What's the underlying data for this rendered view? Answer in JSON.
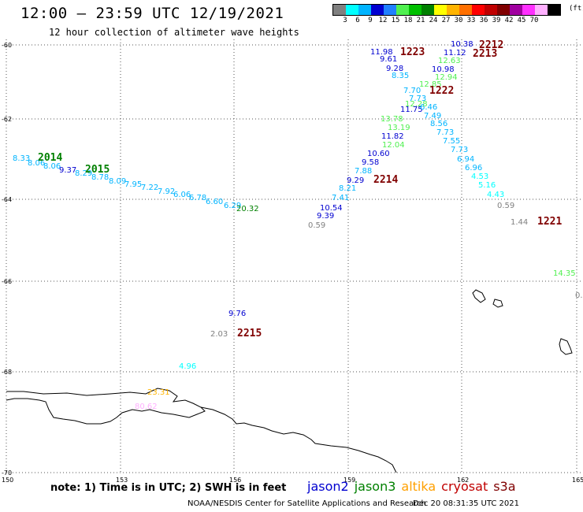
{
  "header": {
    "title": "12:00 — 23:59 UTC 12/19/2021",
    "subtitle": "12 hour collection of altimeter wave heights"
  },
  "legend": {
    "colors": [
      "#808080",
      "#00ffff",
      "#00b4ff",
      "#0000d0",
      "#2080ff",
      "#50f050",
      "#00c000",
      "#008000",
      "#ffff00",
      "#ffb400",
      "#ff7000",
      "#ff0000",
      "#c00000",
      "#800000",
      "#a000a0",
      "#ff30ff",
      "#ffb0ff",
      "#000000"
    ],
    "ticks": [
      "3",
      "6",
      "9",
      "12",
      "15",
      "18",
      "21",
      "24",
      "27",
      "30",
      "33",
      "36",
      "39",
      "42",
      "45",
      "70"
    ],
    "unit": "(ft)"
  },
  "axes": {
    "y_labels": [
      "-60",
      "-62",
      "-64",
      "-66",
      "-68",
      "-70"
    ],
    "x_labels": [
      "150",
      "153",
      "156",
      "159",
      "162",
      "165"
    ]
  },
  "observations": [
    {
      "v": "10.38",
      "c": "#0000d0"
    },
    {
      "v": "11.12",
      "c": "#0000d0"
    },
    {
      "v": "11.98",
      "c": "#0000d0"
    },
    {
      "v": "9.61",
      "c": "#0000d0"
    },
    {
      "v": "9.28",
      "c": "#0000d0"
    },
    {
      "v": "8.35",
      "c": "#00b4ff"
    },
    {
      "v": "12.63",
      "c": "#50f050"
    },
    {
      "v": "12.94",
      "c": "#50f050"
    },
    {
      "v": "10.98",
      "c": "#0000d0"
    },
    {
      "v": "12.85",
      "c": "#50f050"
    },
    {
      "v": "7.70",
      "c": "#00b4ff"
    },
    {
      "v": "7.73",
      "c": "#00b4ff"
    },
    {
      "v": "12.28",
      "c": "#50f050"
    },
    {
      "v": "11.75",
      "c": "#0000d0"
    },
    {
      "v": "6.46",
      "c": "#00b4ff"
    },
    {
      "v": "7.49",
      "c": "#00b4ff"
    },
    {
      "v": "13.78",
      "c": "#50f050"
    },
    {
      "v": "8.56",
      "c": "#00b4ff"
    },
    {
      "v": "13.19",
      "c": "#50f050"
    },
    {
      "v": "7.73",
      "c": "#00b4ff"
    },
    {
      "v": "11.82",
      "c": "#0000d0"
    },
    {
      "v": "7.55",
      "c": "#00b4ff"
    },
    {
      "v": "12.04",
      "c": "#50f050"
    },
    {
      "v": "7.73",
      "c": "#00b4ff"
    },
    {
      "v": "10.60",
      "c": "#0000d0"
    },
    {
      "v": "6.94",
      "c": "#00b4ff"
    },
    {
      "v": "9.58",
      "c": "#0000d0"
    },
    {
      "v": "6.96",
      "c": "#00b4ff"
    },
    {
      "v": "7.88",
      "c": "#00b4ff"
    },
    {
      "v": "9.29",
      "c": "#0000d0"
    },
    {
      "v": "4.53",
      "c": "#00ffff"
    },
    {
      "v": "8.21",
      "c": "#00b4ff"
    },
    {
      "v": "5.16",
      "c": "#00ffff"
    },
    {
      "v": "7.41",
      "c": "#00b4ff"
    },
    {
      "v": "4.43",
      "c": "#00ffff"
    },
    {
      "v": "10.54",
      "c": "#0000d0"
    },
    {
      "v": "9.39",
      "c": "#0000d0"
    },
    {
      "v": "0.59",
      "c": "#808080"
    },
    {
      "v": "0.59",
      "c": "#808080"
    },
    {
      "v": "1.44",
      "c": "#808080"
    },
    {
      "v": "8.33",
      "c": "#00b4ff"
    },
    {
      "v": "8.06",
      "c": "#00b4ff"
    },
    {
      "v": "8.06",
      "c": "#00b4ff"
    },
    {
      "v": "9.37",
      "c": "#0000d0"
    },
    {
      "v": "8.29",
      "c": "#00b4ff"
    },
    {
      "v": "8.78",
      "c": "#00b4ff"
    },
    {
      "v": "8.09",
      "c": "#00b4ff"
    },
    {
      "v": "7.95",
      "c": "#00b4ff"
    },
    {
      "v": "7.22",
      "c": "#00b4ff"
    },
    {
      "v": "7.92",
      "c": "#00b4ff"
    },
    {
      "v": "6.06",
      "c": "#00b4ff"
    },
    {
      "v": "6.78",
      "c": "#00b4ff"
    },
    {
      "v": "6.60",
      "c": "#00b4ff"
    },
    {
      "v": "6.29",
      "c": "#00b4ff"
    },
    {
      "v": "20.32",
      "c": "#008000"
    },
    {
      "v": "14.35",
      "c": "#50f050"
    },
    {
      "v": "0.",
      "c": "#808080"
    },
    {
      "v": "9.76",
      "c": "#0000d0"
    },
    {
      "v": "2.03",
      "c": "#808080"
    },
    {
      "v": "4.96",
      "c": "#00ffff"
    },
    {
      "v": "23.31",
      "c": "#ffb400"
    },
    {
      "v": "80.62",
      "c": "#ffb0ff"
    }
  ],
  "time_tags": [
    {
      "t": "2212",
      "c": "#800000"
    },
    {
      "t": "1223",
      "c": "#800000"
    },
    {
      "t": "2213",
      "c": "#800000"
    },
    {
      "t": "1222",
      "c": "#800000"
    },
    {
      "t": "2214",
      "c": "#800000"
    },
    {
      "t": "1221",
      "c": "#800000"
    },
    {
      "t": "2014",
      "c": "#008000"
    },
    {
      "t": "2015",
      "c": "#008000"
    },
    {
      "t": "2215",
      "c": "#800000"
    }
  ],
  "footer": {
    "note": "note: 1) Time is in UTC; 2) SWH is in feet",
    "satellites": [
      {
        "name": "jason2",
        "color": "#0000d0"
      },
      {
        "name": "jason3",
        "color": "#008000"
      },
      {
        "name": "altika",
        "color": "#ffa000"
      },
      {
        "name": "cryosat",
        "color": "#c00000"
      },
      {
        "name": "s3a",
        "color": "#800000"
      }
    ],
    "credit": "NOAA/NESDIS Center for Satellite Applications and Research",
    "timestamp": "Dec 20 08:31:35 UTC 2021"
  }
}
